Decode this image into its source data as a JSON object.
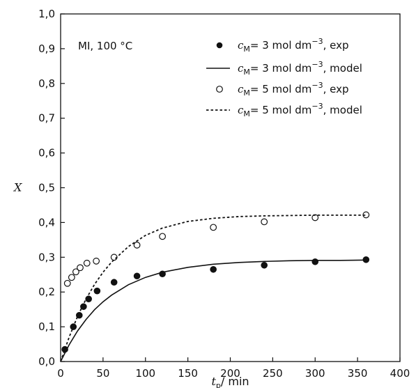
{
  "chart_data": {
    "type": "scatter",
    "xlabel": "t",
    "xlabel_sub": "p",
    "xlabel_unit": "/ min",
    "ylabel": "X",
    "xlim": [
      0,
      400
    ],
    "ylim": [
      0,
      1.0
    ],
    "x_ticks": [
      "0",
      "50",
      "100",
      "150",
      "200",
      "250",
      "300",
      "350",
      "400"
    ],
    "y_ticks": [
      "0,0",
      "0,1",
      "0,2",
      "0,3",
      "0,4",
      "0,5",
      "0,6",
      "0,7",
      "0,8",
      "0,9",
      "1,0"
    ],
    "grid": false,
    "legend_position": "top-right",
    "annotation": "MI, 100 °C",
    "series": [
      {
        "name": "cM= 3 mol dm−3, exp",
        "legend": {
          "sym": "c",
          "sub": "M",
          "text1": "= 3 mol dm",
          "sup": "−3",
          "text2": ", exp"
        },
        "style": "filled-marker",
        "x": [
          5,
          15,
          22,
          27,
          33,
          43,
          63,
          90,
          120,
          180,
          240,
          300,
          360
        ],
        "y": [
          0.035,
          0.1,
          0.133,
          0.158,
          0.18,
          0.203,
          0.228,
          0.246,
          0.252,
          0.265,
          0.277,
          0.287,
          0.293
        ]
      },
      {
        "name": "cM= 3 mol dm−3, model",
        "legend": {
          "sym": "c",
          "sub": "M",
          "text1": "= 3 mol dm",
          "sup": "−3",
          "text2": ", model"
        },
        "style": "solid-line",
        "x": [
          0,
          10,
          20,
          30,
          40,
          50,
          60,
          80,
          100,
          120,
          150,
          180,
          210,
          240,
          270,
          300,
          330,
          360
        ],
        "y": [
          0.0,
          0.048,
          0.088,
          0.121,
          0.149,
          0.172,
          0.191,
          0.221,
          0.242,
          0.257,
          0.271,
          0.28,
          0.285,
          0.288,
          0.29,
          0.291,
          0.291,
          0.292
        ]
      },
      {
        "name": "cM= 5 mol dm−3, exp",
        "legend": {
          "sym": "c",
          "sub": "M",
          "text1": "= 5 mol dm",
          "sup": "−3",
          "text2": ", exp"
        },
        "style": "open-marker",
        "x": [
          8,
          13,
          18,
          23,
          31,
          42,
          63,
          90,
          120,
          180,
          240,
          300,
          360
        ],
        "y": [
          0.225,
          0.242,
          0.258,
          0.27,
          0.283,
          0.289,
          0.3,
          0.335,
          0.36,
          0.386,
          0.402,
          0.414,
          0.422
        ]
      },
      {
        "name": "cM= 5 mol dm−3, model",
        "legend": {
          "sym": "c",
          "sub": "M",
          "text1": "= 5 mol dm",
          "sup": "−3",
          "text2": ", model"
        },
        "style": "dashed-line",
        "x": [
          0,
          10,
          20,
          30,
          40,
          50,
          60,
          80,
          100,
          120,
          150,
          180,
          210,
          240,
          270,
          300,
          330,
          360
        ],
        "y": [
          0.0,
          0.07,
          0.13,
          0.18,
          0.222,
          0.257,
          0.286,
          0.331,
          0.363,
          0.384,
          0.403,
          0.412,
          0.417,
          0.419,
          0.42,
          0.421,
          0.421,
          0.421
        ]
      }
    ]
  }
}
